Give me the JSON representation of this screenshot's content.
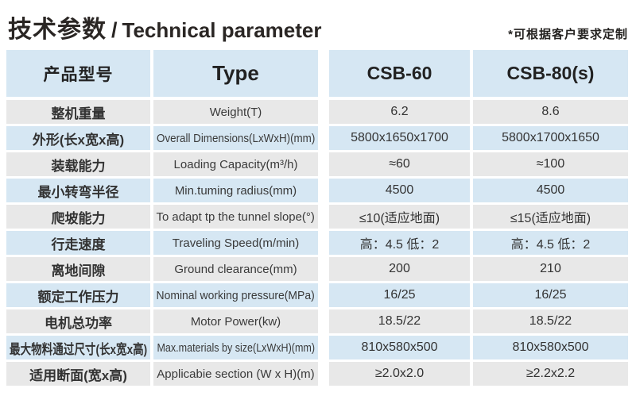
{
  "page": {
    "title_zh": "技术参数",
    "title_sep": "/",
    "title_en": "Technical parameter",
    "note": "*可根据客户要求定制"
  },
  "colors": {
    "header_blue": "#d6e7f3",
    "row_blue": "#d6e7f3",
    "row_gray": "#e8e8e8",
    "text": "#333333"
  },
  "table": {
    "header": {
      "col1": "产品型号",
      "col2": "Type",
      "col3": "CSB-60",
      "col4": "CSB-80(s)"
    },
    "rows": [
      {
        "zh": "整机重量",
        "en": "Weight(T)",
        "csb60": "6.2",
        "csb80": "8.6"
      },
      {
        "zh": "外形(长x宽x高)",
        "en": "Overall Dimensions(LxWxH)(mm)",
        "csb60": "5800x1650x1700",
        "csb80": "5800x1700x1650"
      },
      {
        "zh": "装载能力",
        "en": "Loading Capacity(m³/h)",
        "csb60": "≈60",
        "csb80": "≈100"
      },
      {
        "zh": "最小转弯半径",
        "en": "Min.tuming radius(mm)",
        "csb60": "4500",
        "csb80": "4500"
      },
      {
        "zh": "爬坡能力",
        "en": "To adapt tp the tunnel slope(°)",
        "csb60": "≤10(适应地面)",
        "csb80": "≤15(适应地面)"
      },
      {
        "zh": "行走速度",
        "en": "Traveling Speed(m/min)",
        "csb60": "高：4.5 低：2",
        "csb80": "高：4.5 低：2"
      },
      {
        "zh": "离地间隙",
        "en": "Ground clearance(mm)",
        "csb60": "200",
        "csb80": "210"
      },
      {
        "zh": "额定工作压力",
        "en": "Nominal working pressure(MPa)",
        "csb60": "16/25",
        "csb80": "16/25"
      },
      {
        "zh": "电机总功率",
        "en": "Motor Power(kw)",
        "csb60": "18.5/22",
        "csb80": "18.5/22"
      },
      {
        "zh": "最大物料通过尺寸(长x宽x高)",
        "en": "Max.materials by size(LxWxH)(mm)",
        "csb60": "810x580x500",
        "csb80": "810x580x500"
      },
      {
        "zh": "适用断面(宽x高)",
        "en": "Applicabie section (W x H)(m)",
        "csb60": "≥2.0x2.0",
        "csb80": "≥2.2x2.2"
      }
    ]
  }
}
